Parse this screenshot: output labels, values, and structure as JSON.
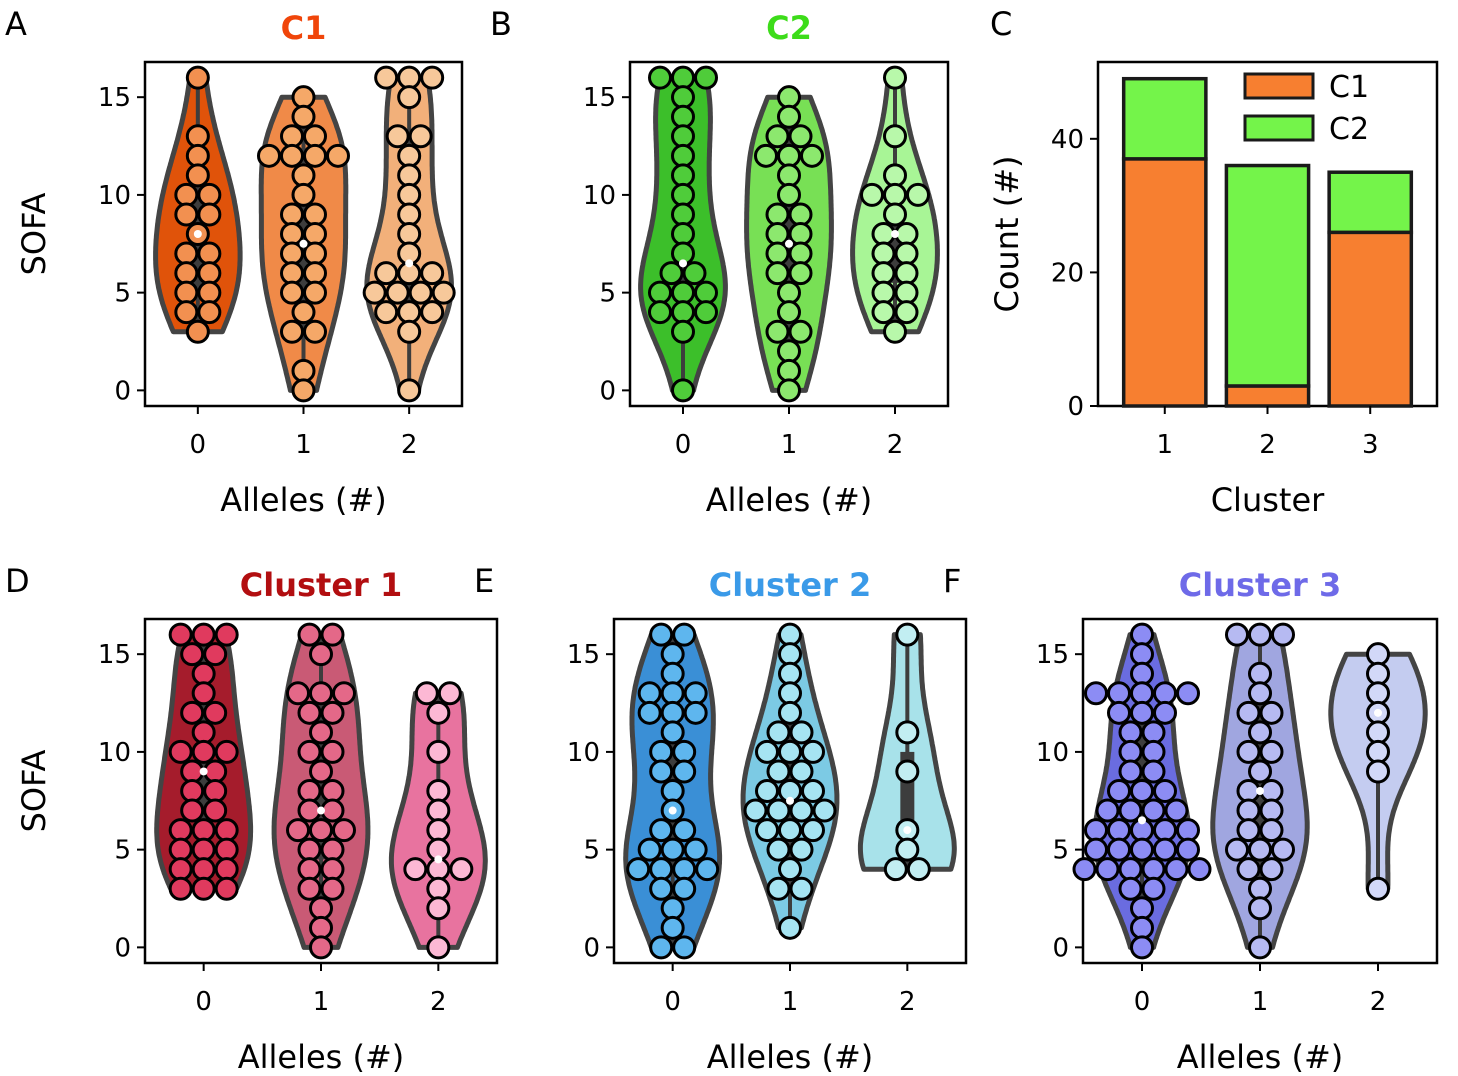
{
  "chart_data": [
    {
      "id": "A",
      "type": "violin",
      "panel_label": "A",
      "title": "C1",
      "title_color": "#f0450a",
      "xlabel": "Alleles (#)",
      "ylabel": "SOFA",
      "categories": [
        "0",
        "1",
        "2"
      ],
      "ylim": [
        -0.8,
        16.8
      ],
      "yticks": [
        0,
        5,
        10,
        15
      ],
      "colors": [
        "#e0530a",
        "#f08a48",
        "#f2b07a"
      ],
      "point_colors": [
        "#f29050",
        "#f5a868",
        "#f7c89a"
      ],
      "groups": [
        {
          "points": [
            16,
            13,
            12,
            11,
            10,
            10,
            9,
            9,
            8,
            7,
            7,
            6,
            6,
            5,
            5,
            4,
            4,
            3
          ],
          "median": 8,
          "q1": 5,
          "q3": 10,
          "top": 16,
          "bottom": 3
        },
        {
          "points": [
            15,
            14,
            13,
            13,
            12,
            12,
            12,
            12,
            11,
            10,
            9,
            9,
            8,
            8,
            7,
            7,
            6,
            6,
            5,
            5,
            4,
            3,
            3,
            1,
            0
          ],
          "median": 7.5,
          "q1": 4.5,
          "q3": 11.5,
          "top": 15,
          "bottom": 0
        },
        {
          "points": [
            16,
            16,
            16,
            15,
            13,
            13,
            12,
            11,
            10,
            9,
            8,
            7,
            6,
            6,
            6,
            5,
            5,
            5,
            5,
            4,
            4,
            4,
            3,
            0
          ],
          "median": 6.5,
          "q1": 4.5,
          "q3": 12,
          "top": 16,
          "bottom": 0
        }
      ]
    },
    {
      "id": "B",
      "type": "violin",
      "panel_label": "B",
      "title": "C2",
      "title_color": "#3ddc1a",
      "xlabel": "Alleles (#)",
      "ylabel": "",
      "categories": [
        "0",
        "1",
        "2"
      ],
      "ylim": [
        -0.8,
        16.8
      ],
      "yticks": [
        0,
        5,
        10,
        15
      ],
      "colors": [
        "#3cbf2a",
        "#78e055",
        "#a8f596"
      ],
      "point_colors": [
        "#4fcc3a",
        "#8ce86e",
        "#b8f8aa"
      ],
      "groups": [
        {
          "points": [
            16,
            16,
            16,
            15,
            14,
            13,
            12,
            11,
            10,
            9,
            8,
            7,
            6,
            6,
            5,
            5,
            5,
            4,
            4,
            4,
            3,
            0
          ],
          "median": 6.5,
          "q1": 4,
          "q3": 11.5,
          "top": 16,
          "bottom": 0
        },
        {
          "points": [
            15,
            14,
            13,
            13,
            12,
            12,
            12,
            11,
            10,
            9,
            9,
            8,
            8,
            7,
            7,
            6,
            6,
            5,
            4,
            3,
            3,
            2,
            1,
            0
          ],
          "median": 7.5,
          "q1": 5,
          "q3": 11.5,
          "top": 15,
          "bottom": 0
        },
        {
          "points": [
            16,
            13,
            11,
            10,
            10,
            10,
            9,
            8,
            8,
            7,
            7,
            6,
            6,
            5,
            5,
            4,
            4,
            3
          ],
          "median": 8,
          "q1": 5.5,
          "q3": 10,
          "top": 16,
          "bottom": 3
        }
      ]
    },
    {
      "id": "C",
      "type": "bar",
      "stacked": true,
      "panel_label": "C",
      "title": "",
      "xlabel": "Cluster",
      "ylabel": "Count (#)",
      "categories": [
        "1",
        "2",
        "3"
      ],
      "ylim": [
        0,
        51.5
      ],
      "yticks": [
        0,
        20,
        40
      ],
      "legend_position": "top-right",
      "series": [
        {
          "name": "C1",
          "color": "#f77f30",
          "values": [
            37,
            3,
            26
          ]
        },
        {
          "name": "C2",
          "color": "#74f44a",
          "values": [
            12,
            33,
            9
          ]
        }
      ]
    },
    {
      "id": "D",
      "type": "violin",
      "panel_label": "D",
      "title": "Cluster 1",
      "title_color": "#b20e10",
      "xlabel": "Alleles (#)",
      "ylabel": "SOFA",
      "categories": [
        "0",
        "1",
        "2"
      ],
      "ylim": [
        -0.8,
        16.8
      ],
      "yticks": [
        0,
        5,
        10,
        15
      ],
      "colors": [
        "#a51c2c",
        "#c95a75",
        "#e8739f"
      ],
      "point_colors": [
        "#e03a5e",
        "#e46888",
        "#fcb8d4"
      ],
      "groups": [
        {
          "points": [
            16,
            16,
            16,
            15,
            15,
            14,
            13,
            12,
            12,
            11,
            10,
            10,
            10,
            9,
            9,
            8,
            8,
            7,
            7,
            6,
            6,
            6,
            5,
            5,
            5,
            4,
            4,
            4,
            3,
            3,
            3
          ],
          "median": 9,
          "q1": 5,
          "q3": 13,
          "top": 16,
          "bottom": 3
        },
        {
          "points": [
            16,
            16,
            15,
            13,
            13,
            13,
            12,
            12,
            11,
            10,
            10,
            9,
            8,
            8,
            7,
            7,
            6,
            6,
            6,
            5,
            5,
            4,
            4,
            3,
            3,
            2,
            1,
            0
          ],
          "median": 7,
          "q1": 4.5,
          "q3": 12,
          "top": 16,
          "bottom": 0
        },
        {
          "points": [
            13,
            13,
            12,
            10,
            8,
            7,
            6,
            5,
            4,
            4,
            4,
            3,
            2,
            0
          ],
          "median": 4.5,
          "q1": 3.5,
          "q3": 8.5,
          "top": 13,
          "bottom": 0
        }
      ]
    },
    {
      "id": "E",
      "type": "violin",
      "panel_label": "E",
      "title": "Cluster 2",
      "title_color": "#3a9ae8",
      "xlabel": "Alleles (#)",
      "ylabel": "",
      "categories": [
        "0",
        "1",
        "2"
      ],
      "ylim": [
        -0.8,
        16.8
      ],
      "yticks": [
        0,
        5,
        10,
        15
      ],
      "colors": [
        "#3a8fd6",
        "#7ccae4",
        "#a8e2ea"
      ],
      "point_colors": [
        "#5eb6ee",
        "#a6e4f2",
        "#c2eef2"
      ],
      "groups": [
        {
          "points": [
            16,
            16,
            15,
            14,
            13,
            13,
            13,
            12,
            12,
            12,
            11,
            10,
            10,
            9,
            9,
            8,
            7,
            6,
            6,
            5,
            5,
            5,
            4,
            4,
            4,
            4,
            3,
            3,
            2,
            1,
            0,
            0
          ],
          "median": 7,
          "q1": 4,
          "q3": 12,
          "top": 16,
          "bottom": 0
        },
        {
          "points": [
            16,
            15,
            14,
            13,
            12,
            11,
            11,
            10,
            10,
            10,
            9,
            9,
            8,
            8,
            8,
            7,
            7,
            7,
            7,
            6,
            6,
            6,
            5,
            5,
            4,
            3,
            3,
            1
          ],
          "median": 7.5,
          "q1": 6,
          "q3": 10.5,
          "top": 16,
          "bottom": 1
        },
        {
          "points": [
            16,
            11,
            9,
            6,
            5,
            4,
            4
          ],
          "median": 6,
          "q1": 4,
          "q3": 10,
          "top": 16,
          "bottom": 4
        }
      ]
    },
    {
      "id": "F",
      "type": "violin",
      "panel_label": "F",
      "title": "Cluster 3",
      "title_color": "#6e6ae8",
      "xlabel": "Alleles (#)",
      "ylabel": "",
      "categories": [
        "0",
        "1",
        "2"
      ],
      "ylim": [
        -0.8,
        16.8
      ],
      "yticks": [
        0,
        5,
        10,
        15
      ],
      "colors": [
        "#6a6ce0",
        "#a0a6e0",
        "#c4ccf0"
      ],
      "point_colors": [
        "#8c8cf4",
        "#b6baf2",
        "#d2d8f8"
      ],
      "groups": [
        {
          "points": [
            16,
            15,
            14,
            13,
            13,
            13,
            13,
            13,
            12,
            12,
            12,
            11,
            11,
            10,
            10,
            9,
            9,
            8,
            8,
            8,
            7,
            7,
            7,
            7,
            6,
            6,
            6,
            6,
            6,
            5,
            5,
            5,
            5,
            5,
            4,
            4,
            4,
            4,
            4,
            4,
            3,
            3,
            2,
            1,
            0
          ],
          "median": 6.5,
          "q1": 4,
          "q3": 11,
          "top": 16,
          "bottom": 0
        },
        {
          "points": [
            16,
            16,
            16,
            14,
            13,
            12,
            12,
            11,
            10,
            10,
            9,
            8,
            8,
            7,
            7,
            6,
            6,
            5,
            5,
            5,
            4,
            4,
            3,
            2,
            0
          ],
          "median": 8,
          "q1": 4.5,
          "q3": 12,
          "top": 16,
          "bottom": 0
        },
        {
          "points": [
            15,
            14,
            13,
            12,
            11,
            10,
            9,
            3
          ],
          "median": 12,
          "q1": 10,
          "q3": 13.5,
          "top": 15,
          "bottom": 3
        }
      ]
    }
  ]
}
